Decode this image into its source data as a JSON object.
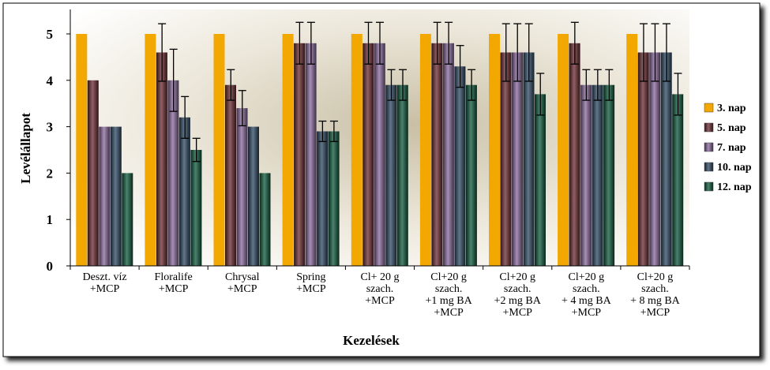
{
  "chart_data": {
    "type": "bar",
    "title": "",
    "xlabel": "Kezelések",
    "ylabel": "Levélállapot",
    "ylim": [
      0,
      5
    ],
    "yticks": [
      0,
      1,
      2,
      3,
      4,
      5
    ],
    "grid": false,
    "legend_position": "right",
    "categories": [
      [
        "Deszt. víz",
        "+MCP"
      ],
      [
        "Floralife",
        "+MCP"
      ],
      [
        "Chrysal",
        "+MCP"
      ],
      [
        "Spring",
        "+MCP"
      ],
      [
        "Cl+ 20 g",
        "szach.",
        "+MCP"
      ],
      [
        "Cl+20 g",
        "szach.",
        "+1 mg BA",
        "+MCP"
      ],
      [
        "Cl+20 g",
        "szach.",
        "+2 mg BA",
        "+MCP"
      ],
      [
        "Cl+20 g",
        "szach.",
        "+ 4 mg BA",
        "+MCP"
      ],
      [
        "Cl+20 g",
        "szach.",
        "+ 8 mg BA",
        "+MCP"
      ]
    ],
    "series": [
      {
        "name": "3. nap",
        "color": "#f2a800",
        "values": [
          5,
          5,
          5,
          5,
          5,
          5,
          5,
          5,
          5
        ],
        "errors": [
          0,
          0,
          0,
          0,
          0,
          0,
          0,
          0,
          0
        ]
      },
      {
        "name": "5. nap",
        "color": "#6b2b30",
        "values": [
          4,
          4.6,
          3.9,
          4.8,
          4.8,
          4.8,
          4.6,
          4.8,
          4.6
        ],
        "errors": [
          0,
          0.62,
          0.33,
          0.45,
          0.45,
          0.45,
          0.62,
          0.45,
          0.62
        ]
      },
      {
        "name": "7. nap",
        "color": "#8a6a9e",
        "values": [
          3,
          4.0,
          3.4,
          4.8,
          4.8,
          4.8,
          4.6,
          3.9,
          4.6
        ],
        "errors": [
          0,
          0.67,
          0.38,
          0.45,
          0.45,
          0.45,
          0.62,
          0.33,
          0.62
        ]
      },
      {
        "name": "10. nap",
        "color": "#2e4a63",
        "values": [
          3,
          3.2,
          3.0,
          2.9,
          3.9,
          4.3,
          4.6,
          3.9,
          4.6
        ],
        "errors": [
          0,
          0.45,
          0,
          0.22,
          0.33,
          0.45,
          0.62,
          0.33,
          0.62
        ]
      },
      {
        "name": "12. nap",
        "color": "#0e5a3c",
        "values": [
          2,
          2.5,
          2.0,
          2.9,
          3.9,
          3.9,
          3.7,
          3.9,
          3.7
        ],
        "errors": [
          0,
          0.25,
          0,
          0.22,
          0.33,
          0.33,
          0.45,
          0.33,
          0.45
        ]
      }
    ]
  }
}
